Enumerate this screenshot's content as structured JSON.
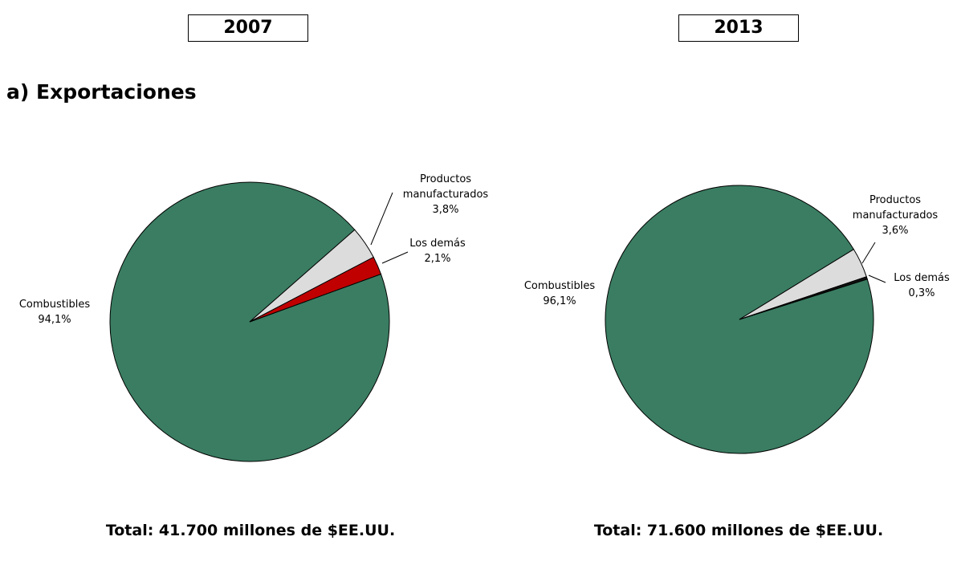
{
  "heading": "a) Exportaciones",
  "chart_data": [
    {
      "type": "pie",
      "title": "2007",
      "categories": [
        "Combustibles",
        "Productos manufacturados",
        "Los demás"
      ],
      "values": [
        94.1,
        3.8,
        2.1
      ],
      "value_labels": [
        "94,1%",
        "3,8%",
        "2,1%"
      ],
      "colors": [
        "#3a7d62",
        "#dcdcdc",
        "#c00000"
      ],
      "note": "Total: 41.700 millones de $EE.UU."
    },
    {
      "type": "pie",
      "title": "2013",
      "categories": [
        "Combustibles",
        "Productos manufacturados",
        "Los demás"
      ],
      "values": [
        96.1,
        3.6,
        0.3
      ],
      "value_labels": [
        "96,1%",
        "3,6%",
        "0,3%"
      ],
      "colors": [
        "#3a7d62",
        "#dcdcdc",
        "#111111"
      ],
      "note": "Total: 71.600 millones de $EE.UU."
    }
  ]
}
